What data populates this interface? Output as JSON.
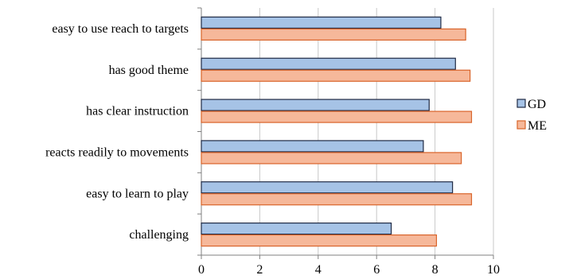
{
  "chart_data": {
    "type": "bar",
    "orientation": "horizontal",
    "categories": [
      "easy to use reach to targets",
      "has good theme",
      "has clear instruction",
      "reacts readily to movements",
      "easy to learn to play",
      "challenging"
    ],
    "series": [
      {
        "name": "GD",
        "values": [
          8.2,
          8.7,
          7.8,
          7.6,
          8.6,
          6.5
        ],
        "fill": "#a6c3e6",
        "stroke": "#1f2a44"
      },
      {
        "name": "ME",
        "values": [
          9.05,
          9.2,
          9.25,
          8.9,
          9.25,
          8.05
        ],
        "fill": "#f6b89a",
        "stroke": "#d9642a"
      }
    ],
    "xlim": [
      0,
      10
    ],
    "xticks": [
      0,
      2,
      4,
      6,
      8,
      10
    ],
    "grid": true,
    "legend": "right",
    "title": "",
    "xlabel": "",
    "ylabel": ""
  }
}
